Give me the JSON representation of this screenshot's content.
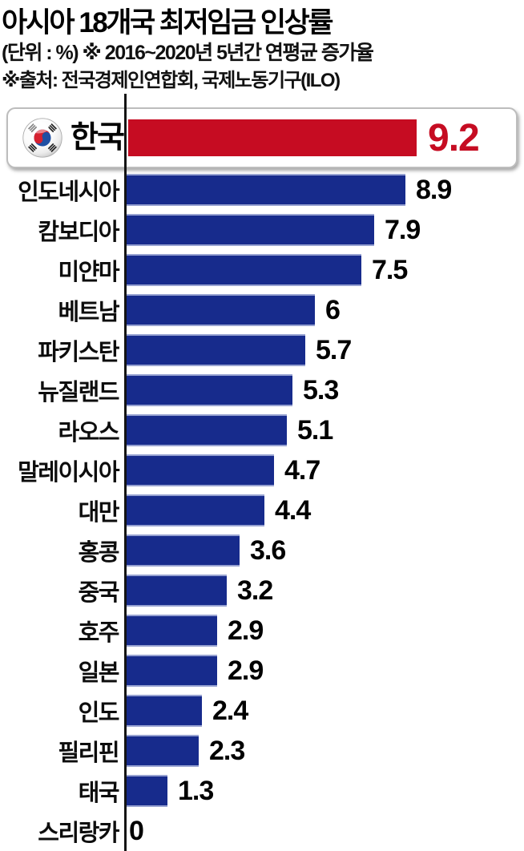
{
  "header": {
    "title": "아시아 18개국 최저임금 인상률",
    "subtitle": "(단위 : %) ※ 2016~2020년 5년간 연평균 증가율",
    "source": "※출처: 전국경제인연합회, 국제노동기구(ILO)"
  },
  "colors": {
    "highlight_bar": "#c60c22",
    "highlight_value_text": "#c60c22",
    "bar": "#172b8c",
    "bar_edge": "#97a2d1",
    "axis": "#141414",
    "value_text": "#000000",
    "box_border": "#bdbdbd"
  },
  "icons": {
    "korea_flag": "south-korea-flag-icon"
  },
  "chart_data": {
    "type": "bar",
    "orientation": "horizontal",
    "title": "아시아 18개국 최저임금 인상률",
    "unit": "%",
    "period_note": "2016~2020년 5년간 연평균 증가율",
    "xlim": [
      0,
      10
    ],
    "grid": false,
    "legend": false,
    "highlight": {
      "label": "한국",
      "value": 9.2,
      "value_text": "9.2"
    },
    "rows": [
      {
        "label": "인도네시아",
        "value": 8.9,
        "value_text": "8.9"
      },
      {
        "label": "캄보디아",
        "value": 7.9,
        "value_text": "7.9"
      },
      {
        "label": "미얀마",
        "value": 7.5,
        "value_text": "7.5"
      },
      {
        "label": "베트남",
        "value": 6,
        "value_text": "6"
      },
      {
        "label": "파키스탄",
        "value": 5.7,
        "value_text": "5.7"
      },
      {
        "label": "뉴질랜드",
        "value": 5.3,
        "value_text": "5.3"
      },
      {
        "label": "라오스",
        "value": 5.1,
        "value_text": "5.1"
      },
      {
        "label": "말레이시아",
        "value": 4.7,
        "value_text": "4.7"
      },
      {
        "label": "대만",
        "value": 4.4,
        "value_text": "4.4"
      },
      {
        "label": "홍콩",
        "value": 3.6,
        "value_text": "3.6"
      },
      {
        "label": "중국",
        "value": 3.2,
        "value_text": "3.2"
      },
      {
        "label": "호주",
        "value": 2.9,
        "value_text": "2.9"
      },
      {
        "label": "일본",
        "value": 2.9,
        "value_text": "2.9"
      },
      {
        "label": "인도",
        "value": 2.4,
        "value_text": "2.4"
      },
      {
        "label": "필리핀",
        "value": 2.3,
        "value_text": "2.3"
      },
      {
        "label": "태국",
        "value": 1.3,
        "value_text": "1.3"
      },
      {
        "label": "스리랑카",
        "value": 0,
        "value_text": "0"
      }
    ]
  }
}
